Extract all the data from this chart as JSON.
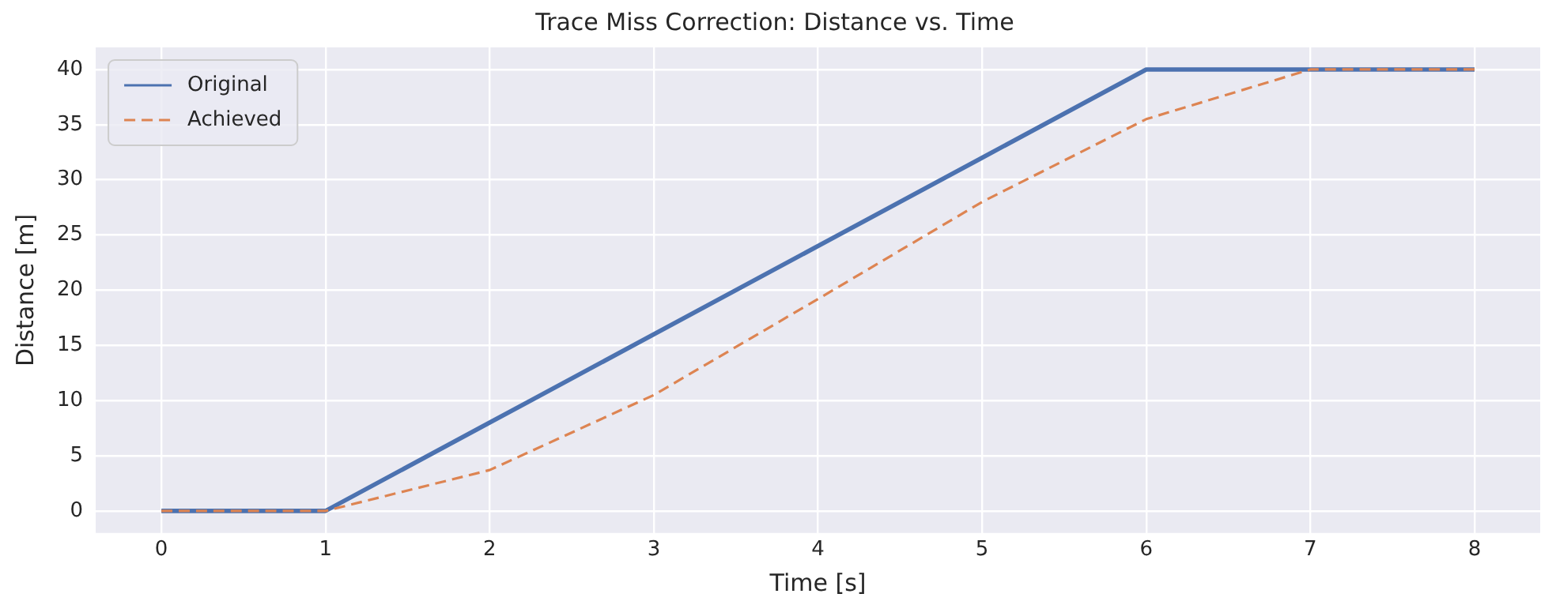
{
  "chart_data": {
    "type": "line",
    "title": "Trace Miss Correction: Distance vs. Time",
    "xlabel": "Time [s]",
    "ylabel": "Distance [m]",
    "x": [
      0,
      1,
      2,
      3,
      4,
      5,
      6,
      7,
      8
    ],
    "series": [
      {
        "name": "Original",
        "color": "#4c72b0",
        "line_style": "solid",
        "values": [
          0,
          0,
          8,
          16,
          24,
          32,
          40,
          40,
          40
        ]
      },
      {
        "name": "Achieved",
        "color": "#dd8452",
        "line_style": "dashed",
        "values": [
          0,
          0,
          3.7,
          10.5,
          19.2,
          28,
          35.5,
          40,
          40
        ]
      }
    ],
    "xlim": [
      -0.4,
      8.4
    ],
    "xticks": [
      0,
      1,
      2,
      3,
      4,
      5,
      6,
      7,
      8
    ],
    "ylim": [
      -2,
      42
    ],
    "yticks": [
      0,
      5,
      10,
      15,
      20,
      25,
      30,
      35,
      40
    ],
    "grid": true,
    "legend": "top left",
    "marker": "none"
  }
}
